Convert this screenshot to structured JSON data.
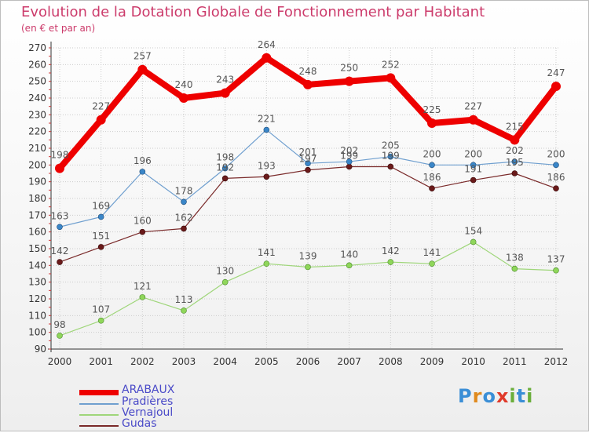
{
  "title": "Evolution de la Dotation Globale de Fonctionnement par Habitant",
  "subtitle": "(en € et par an)",
  "logo": {
    "text": "Proxiti",
    "letters": [
      "P",
      "r",
      "o",
      "x",
      "i",
      "t",
      "i"
    ],
    "colors": [
      "#3a8ed6",
      "#e08a1e",
      "#3a8ed6",
      "#e03a2a",
      "#6aae3a",
      "#3a8ed6",
      "#6aae3a"
    ]
  },
  "chart_data": {
    "type": "line",
    "title": "Evolution de la Dotation Globale de Fonctionnement par Habitant",
    "subtitle": "(en € et par an)",
    "x": [
      "2000",
      "2001",
      "2002",
      "2003",
      "2004",
      "2005",
      "2006",
      "2007",
      "2008",
      "2009",
      "2010",
      "2011",
      "2012"
    ],
    "ylim": [
      90,
      270
    ],
    "yticks": [
      90,
      100,
      110,
      120,
      130,
      140,
      150,
      160,
      170,
      180,
      190,
      200,
      210,
      220,
      230,
      240,
      250,
      260,
      270
    ],
    "grid": true,
    "legend_position": "bottom-left",
    "series": [
      {
        "name": "ARABAUX",
        "color": "#ee0000",
        "values": [
          198,
          227,
          257,
          240,
          243,
          264,
          248,
          250,
          252,
          225,
          227,
          215,
          247
        ]
      },
      {
        "name": "Pradières",
        "color": "#6f9fcf",
        "values": [
          163,
          169,
          196,
          178,
          198,
          221,
          201,
          202,
          205,
          200,
          200,
          202,
          200
        ]
      },
      {
        "name": "Vernajoul",
        "color": "#9fd67a",
        "values": [
          98,
          107,
          121,
          113,
          130,
          141,
          139,
          140,
          142,
          141,
          154,
          138,
          137
        ]
      },
      {
        "name": "Gudas",
        "color": "#7a2a2a",
        "values": [
          142,
          151,
          160,
          162,
          192,
          193,
          197,
          199,
          199,
          186,
          191,
          195,
          186
        ]
      }
    ]
  }
}
